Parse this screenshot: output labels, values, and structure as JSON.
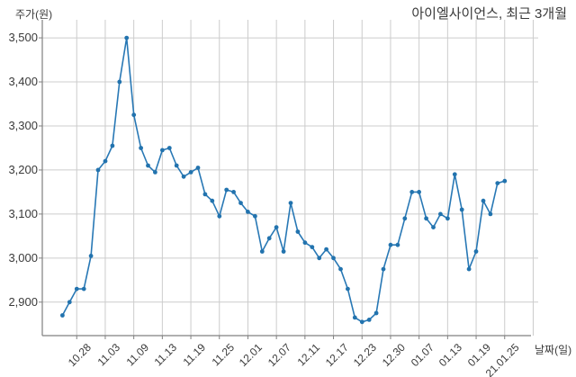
{
  "chart_data": {
    "type": "line",
    "title": "아이엘사이언스, 최근 3개월",
    "ylabel": "주가(원)",
    "xlabel": "날짜(일)",
    "x": [
      "10.26",
      "10.27",
      "10.28",
      "10.29",
      "10.30",
      "11.02",
      "11.03",
      "11.04",
      "11.05",
      "11.06",
      "11.09",
      "11.10",
      "11.11",
      "11.12",
      "11.13",
      "11.16",
      "11.17",
      "11.18",
      "11.19",
      "11.20",
      "11.23",
      "11.24",
      "11.25",
      "11.26",
      "11.27",
      "11.30",
      "12.01",
      "12.02",
      "12.03",
      "12.04",
      "12.07",
      "12.08",
      "12.09",
      "12.10",
      "12.11",
      "12.14",
      "12.15",
      "12.16",
      "12.17",
      "12.18",
      "12.21",
      "12.22",
      "12.23",
      "12.24",
      "12.28",
      "12.29",
      "12.30",
      "01.04",
      "01.05",
      "01.06",
      "01.07",
      "01.08",
      "01.11",
      "01.12",
      "01.13",
      "01.14",
      "01.15",
      "01.18",
      "01.19",
      "01.20",
      "01.21",
      "01.22",
      "01.25"
    ],
    "values": [
      2870,
      2900,
      2930,
      2930,
      3005,
      3200,
      3220,
      3255,
      3400,
      3500,
      3325,
      3250,
      3210,
      3195,
      3245,
      3250,
      3210,
      3185,
      3195,
      3205,
      3145,
      3130,
      3095,
      3155,
      3150,
      3125,
      3105,
      3095,
      3015,
      3045,
      3070,
      3015,
      3125,
      3060,
      3035,
      3025,
      3000,
      3020,
      3000,
      2975,
      2930,
      2865,
      2855,
      2860,
      2875,
      2975,
      3030,
      3030,
      3090,
      3150,
      3150,
      3090,
      3070,
      3100,
      3090,
      3190,
      3110,
      2975,
      3015,
      3130,
      3100,
      3170,
      3175
    ],
    "ylim": [
      2820,
      3540
    ],
    "grid": true,
    "legend": "none",
    "y_ticks": {
      "labels": [
        "2,900",
        "3,000",
        "3,100",
        "3,200",
        "3,300",
        "3,400",
        "3,500"
      ],
      "values": [
        2900,
        3000,
        3100,
        3200,
        3300,
        3400,
        3500
      ]
    },
    "x_ticks": {
      "labels": [
        "10.28",
        "11.03",
        "11.09",
        "11.13",
        "11.19",
        "11.25",
        "12.01",
        "12.07",
        "12.11",
        "12.17",
        "12.23",
        "12.30",
        "01.07",
        "01.13",
        "01.19",
        "21.01.25"
      ],
      "indices": [
        2,
        6,
        10,
        14,
        18,
        22,
        26,
        30,
        34,
        38,
        42,
        46,
        50,
        54,
        58,
        62
      ]
    },
    "colors": {
      "line": "#2878b5",
      "marker": "#2273ae",
      "grid": "#cccccc",
      "spine": "#808080",
      "text": "#3a3a3a",
      "background": "#ffffff"
    }
  }
}
